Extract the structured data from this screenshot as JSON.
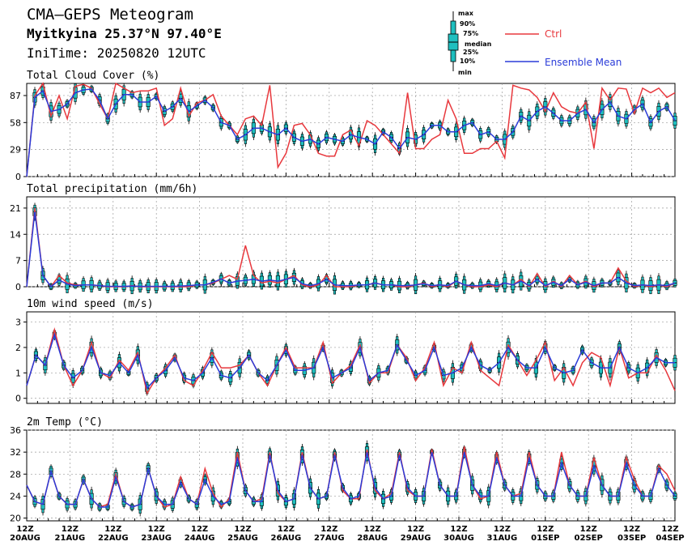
{
  "header": {
    "title": "CMA—GEPS Meteogram",
    "location": "Myitkyina 25.37°N 97.40°E",
    "initime": "IniTime: 20250820 12UTC"
  },
  "legend": {
    "box_labels": [
      "max",
      "90%",
      "75%",
      "median",
      "25%",
      "10%",
      "min"
    ],
    "ctrl_label": "Ctrl",
    "mean_label": "Ensemble Mean",
    "ctrl_color": "#e8383d",
    "mean_color": "#2a3bd8",
    "box_color": "#1fbfbf"
  },
  "chart_data": [
    {
      "type": "box",
      "title": "Total Cloud Cover (%)",
      "ylim": [
        0,
        100
      ],
      "yticks": [
        0,
        29,
        58,
        87
      ],
      "ctrl": [
        0,
        87,
        100,
        65,
        87,
        62,
        97,
        99,
        95,
        78,
        62,
        100,
        95,
        90,
        92,
        92,
        95,
        55,
        62,
        95,
        65,
        79,
        82,
        88,
        65,
        55,
        45,
        62,
        65,
        55,
        98,
        10,
        25,
        55,
        57,
        45,
        25,
        22,
        22,
        45,
        50,
        33,
        60,
        55,
        45,
        35,
        25,
        90,
        30,
        30,
        40,
        45,
        82,
        62,
        25,
        25,
        30,
        30,
        38,
        20,
        98,
        95,
        93,
        85,
        70,
        90,
        75,
        70,
        68,
        80,
        30,
        95,
        82,
        95,
        94,
        68,
        95,
        90,
        95,
        85,
        90
      ],
      "mean": [
        0,
        85,
        92,
        70,
        72,
        78,
        90,
        93,
        94,
        82,
        62,
        78,
        88,
        88,
        80,
        80,
        86,
        70,
        75,
        84,
        70,
        76,
        82,
        74,
        58,
        55,
        40,
        45,
        52,
        52,
        48,
        45,
        52,
        42,
        38,
        40,
        35,
        42,
        40,
        38,
        45,
        42,
        40,
        35,
        48,
        42,
        30,
        42,
        40,
        45,
        55,
        55,
        48,
        48,
        55,
        58,
        45,
        48,
        40,
        40,
        48,
        65,
        60,
        70,
        75,
        68,
        60,
        60,
        68,
        72,
        58,
        72,
        80,
        65,
        62,
        72,
        78,
        58,
        70,
        75,
        60
      ]
    },
    {
      "type": "box",
      "title": "Total precipitation (mm/6h)",
      "ylim": [
        0,
        24
      ],
      "yticks": [
        0,
        7,
        14,
        21
      ],
      "ctrl": [
        0,
        21,
        3,
        0,
        3,
        1,
        0.5,
        0.5,
        0.5,
        0.3,
        0,
        0,
        0,
        0.3,
        0,
        0,
        0,
        0,
        0,
        0,
        0,
        0.5,
        0.5,
        1,
        2,
        3,
        2,
        11,
        3,
        1,
        1.5,
        1,
        2,
        3,
        0.5,
        0,
        0.5,
        3,
        0,
        0,
        0,
        0.5,
        0.5,
        1,
        0.5,
        0.5,
        0,
        0,
        0.5,
        1,
        0,
        0.5,
        0,
        1.5,
        0.5,
        0,
        0,
        0.5,
        0,
        1,
        0.5,
        2,
        0,
        3.5,
        0,
        1.5,
        0,
        3,
        0.5,
        1.5,
        0,
        1,
        1,
        5,
        1.5,
        0,
        0.5,
        0,
        0.5,
        0,
        1
      ],
      "mean": [
        0,
        20,
        3,
        0,
        1.8,
        0.7,
        0.3,
        0.5,
        0.5,
        0.3,
        0.1,
        0.1,
        0.1,
        0.2,
        0.1,
        0.1,
        0.1,
        0.1,
        0.1,
        0.2,
        0.3,
        0.5,
        0.5,
        1.2,
        2.1,
        1,
        1.5,
        1.7,
        2,
        1.5,
        1.8,
        1.5,
        2,
        2.5,
        0.8,
        0.3,
        0.8,
        2,
        0.5,
        0.3,
        0.3,
        0.5,
        0.5,
        1,
        0.5,
        0.5,
        0.3,
        0.3,
        0.5,
        0.8,
        0.3,
        0.5,
        0.3,
        1.5,
        0.5,
        0.3,
        0.3,
        0.8,
        0.3,
        1,
        0.5,
        1.5,
        0.3,
        2,
        0.3,
        1.2,
        0.3,
        2,
        0.5,
        1.2,
        0.3,
        1,
        1,
        2.5,
        1,
        0.3,
        0.5,
        0.3,
        0.5,
        0.3,
        1
      ]
    },
    {
      "type": "box",
      "title": "10m wind speed (m/s)",
      "ylim": [
        -0.2,
        3.4
      ],
      "yticks": [
        0,
        1,
        2,
        3
      ],
      "ctrl": [
        0.5,
        1.7,
        1.3,
        2.7,
        1.3,
        0.5,
        1.1,
        2.2,
        1.0,
        0.8,
        1.5,
        1.1,
        1.8,
        0.2,
        0.8,
        1.2,
        1.7,
        0.7,
        0.5,
        1.1,
        1.8,
        1.2,
        1.2,
        1.3,
        1.7,
        1.0,
        0.5,
        1.3,
        2.0,
        1.2,
        1.2,
        1.2,
        2.2,
        0.6,
        1.0,
        1.3,
        2.1,
        0.6,
        1.0,
        1.0,
        2.1,
        1.6,
        0.7,
        1.2,
        2.2,
        0.5,
        1.2,
        1.0,
        2.2,
        1.1,
        0.8,
        0.5,
        2.1,
        1.5,
        0.9,
        1.5,
        2.2,
        0.7,
        1.2,
        0.5,
        1.4,
        1.8,
        1.6,
        0.5,
        2.0,
        0.8,
        1.0,
        1.0,
        1.7,
        1.1,
        0.3
      ],
      "mean": [
        0.5,
        1.7,
        1.3,
        2.5,
        1.3,
        0.8,
        1.1,
        2.0,
        1.0,
        0.9,
        1.4,
        1.0,
        1.7,
        0.4,
        0.8,
        1.1,
        1.6,
        0.8,
        0.7,
        1.0,
        1.6,
        0.9,
        0.8,
        1.2,
        1.7,
        1.0,
        0.7,
        1.3,
        1.9,
        1.1,
        1.1,
        1.2,
        2.0,
        0.8,
        1.0,
        1.2,
        2.0,
        0.7,
        1.0,
        1.1,
        2.1,
        1.5,
        0.9,
        1.1,
        2.0,
        0.9,
        1.0,
        1.2,
        2.0,
        1.3,
        1.1,
        1.4,
        2.0,
        1.5,
        1.2,
        1.2,
        2.0,
        1.2,
        1.0,
        1.1,
        1.9,
        1.4,
        1.2,
        1.2,
        2.0,
        1.2,
        1.0,
        1.2,
        1.6,
        1.4,
        1.4
      ]
    },
    {
      "type": "box",
      "title": "2m Temp (°C)",
      "ylim": [
        19.5,
        36
      ],
      "yticks": [
        20,
        24,
        28,
        32,
        36
      ],
      "ctrl": [
        26,
        23,
        22.5,
        28.5,
        24,
        22.5,
        22.5,
        27,
        23.5,
        22,
        22.5,
        28,
        23,
        22,
        22.5,
        29,
        24,
        22,
        22.5,
        27.5,
        23.5,
        22.5,
        29,
        24.5,
        22,
        23.5,
        32,
        25,
        23,
        23.5,
        32,
        24.5,
        23,
        23.5,
        32,
        25.5,
        23.5,
        24,
        32,
        25,
        23.5,
        23.5,
        32.5,
        25,
        23.5,
        24.5,
        32,
        25,
        24,
        24,
        32.5,
        26,
        24,
        24,
        33,
        26,
        23.5,
        24,
        32,
        26,
        24,
        24.5,
        32,
        26,
        24,
        24,
        32,
        26,
        24,
        24,
        31,
        26,
        24,
        24,
        31,
        27,
        24,
        24,
        29.5,
        28,
        25
      ],
      "mean": [
        26,
        23,
        22.5,
        28.5,
        24,
        22.5,
        22.5,
        27,
        23.5,
        22,
        22,
        27.5,
        23,
        22,
        22.5,
        29,
        24,
        22.5,
        22.5,
        26.5,
        23.5,
        22.5,
        27,
        24,
        22.5,
        23,
        31,
        25,
        23,
        23,
        31.5,
        25,
        23,
        23.5,
        31.5,
        25.5,
        23.5,
        24,
        31.5,
        25.5,
        23.5,
        24,
        32,
        25.5,
        23.5,
        24,
        31.5,
        25.5,
        24,
        24,
        32,
        26,
        24,
        24,
        32,
        26,
        24,
        24,
        31,
        26,
        24,
        24,
        31,
        26,
        24,
        24,
        30,
        26,
        24,
        24,
        29.5,
        26,
        24,
        24,
        30,
        26,
        24,
        24,
        29,
        26,
        24
      ]
    }
  ],
  "x_axis": {
    "labels": [
      [
        "12Z",
        "20AUG"
      ],
      [
        "12Z",
        "21AUG"
      ],
      [
        "12Z",
        "22AUG"
      ],
      [
        "12Z",
        "23AUG"
      ],
      [
        "12Z",
        "24AUG"
      ],
      [
        "12Z",
        "25AUG"
      ],
      [
        "12Z",
        "26AUG"
      ],
      [
        "12Z",
        "27AUG"
      ],
      [
        "12Z",
        "28AUG"
      ],
      [
        "12Z",
        "29AUG"
      ],
      [
        "12Z",
        "30AUG"
      ],
      [
        "12Z",
        "31AUG"
      ],
      [
        "12Z",
        "01SEP"
      ],
      [
        "12Z",
        "02SEP"
      ],
      [
        "12Z",
        "03SEP"
      ],
      [
        "12Z",
        "04SEP"
      ]
    ]
  }
}
